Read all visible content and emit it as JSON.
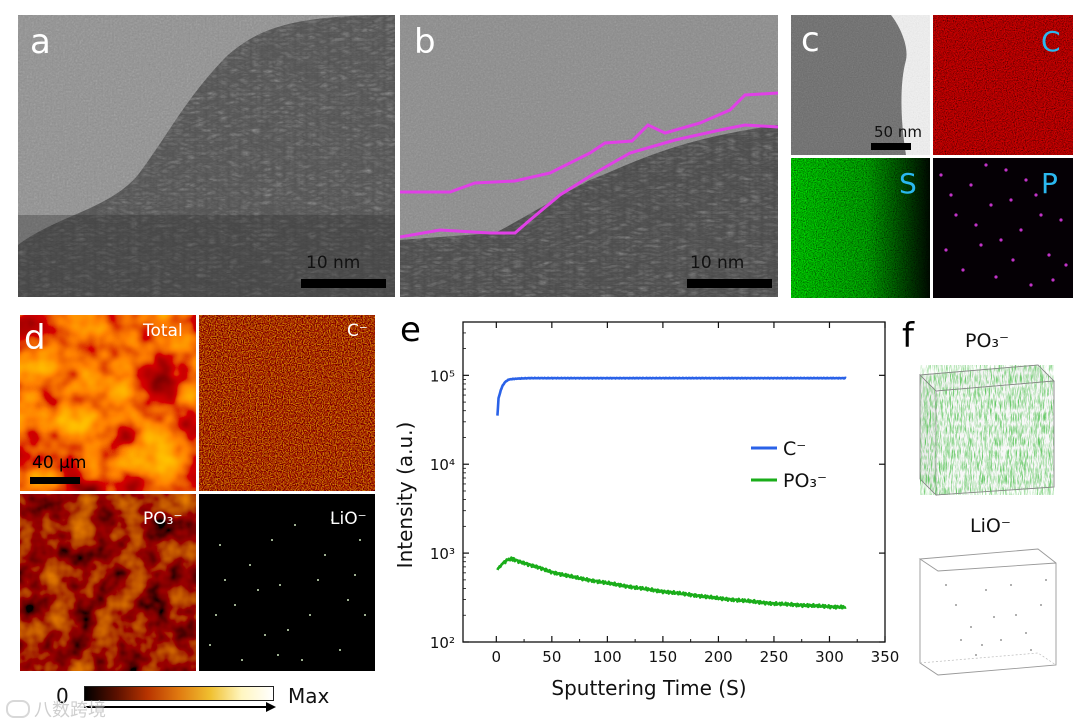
{
  "panels": {
    "a": {
      "label": "a",
      "scale": "10 nm"
    },
    "b": {
      "label": "b",
      "scale": "10 nm"
    },
    "c": {
      "label": "c",
      "scale": "50 nm",
      "elements": [
        "C",
        "S",
        "P"
      ]
    },
    "d": {
      "label": "d",
      "scale": "40 μm",
      "maps": [
        "Total",
        "C⁻",
        "PO₃⁻",
        "LiO⁻"
      ]
    },
    "e": {
      "label": "e"
    },
    "f": {
      "label": "f",
      "species": [
        "PO₃⁻",
        "LiO⁻"
      ]
    }
  },
  "colorbar": {
    "min": "0",
    "max": "Max"
  },
  "watermark": "八数跨境",
  "colors": {
    "c_series": "#2a62e8",
    "po3_series": "#1aad1a",
    "c_map": "#cc1a1a",
    "s_map": "#22aa22",
    "p_map": "#cc33cc"
  },
  "chart_data": {
    "type": "line",
    "xlabel": "Sputtering Time (S)",
    "ylabel": "Intensity (a.u.)",
    "xlim": [
      -30,
      350
    ],
    "ylim_log10": [
      2,
      5.6
    ],
    "yscale": "log",
    "xticks": [
      0,
      50,
      100,
      150,
      200,
      250,
      300,
      350
    ],
    "yticks": [
      {
        "exp": 2,
        "label": "10²"
      },
      {
        "exp": 3,
        "label": "10³"
      },
      {
        "exp": 4,
        "label": "10⁴"
      },
      {
        "exp": 5,
        "label": "10⁵"
      }
    ],
    "legend_position": "middle-right",
    "series": [
      {
        "name": "C⁻",
        "color": "#2a62e8",
        "x": [
          1,
          2,
          4,
          6,
          8,
          10,
          12,
          15,
          20,
          30,
          50,
          100,
          150,
          200,
          250,
          300,
          315
        ],
        "y": [
          35000,
          55000,
          68000,
          78000,
          84000,
          88000,
          90000,
          91000,
          92000,
          93000,
          93000,
          93000,
          93000,
          93000,
          93000,
          93000,
          93000
        ]
      },
      {
        "name": "PO₃⁻",
        "color": "#1aad1a",
        "x": [
          1,
          3,
          6,
          10,
          13,
          16,
          20,
          30,
          40,
          50,
          75,
          100,
          125,
          150,
          175,
          200,
          225,
          250,
          275,
          300,
          315
        ],
        "y": [
          650,
          700,
          770,
          840,
          860,
          850,
          810,
          740,
          680,
          610,
          520,
          460,
          410,
          370,
          340,
          310,
          290,
          270,
          260,
          250,
          245
        ]
      }
    ]
  }
}
